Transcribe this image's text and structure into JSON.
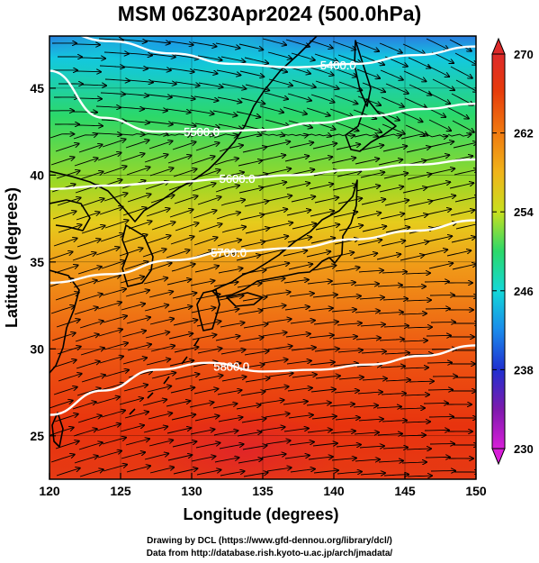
{
  "title": "MSM 06Z30Apr2024 (500.0hPa)",
  "map": {
    "xlabel": "Longitude (degrees)",
    "ylabel": "Latitude  (degrees)",
    "lon_range": [
      120,
      150
    ],
    "lat_range": [
      22.5,
      48
    ],
    "lon_ticks": [
      "120",
      "125",
      "130",
      "135",
      "140",
      "145",
      "150"
    ],
    "lat_ticks": [
      "25",
      "30",
      "35",
      "40",
      "45"
    ],
    "field": "temperature",
    "contours": [
      {
        "label": "5400.0",
        "lats": [
          48.4,
          47.7,
          47.0,
          46.4,
          46.2,
          46.4,
          46.9,
          47.4
        ]
      },
      {
        "label": "5500.0",
        "lats": [
          46.0,
          43.3,
          42.5,
          42.5,
          42.6,
          43.0,
          43.4,
          43.8,
          44.1
        ]
      },
      {
        "label": "5600.0",
        "lats": [
          39.2,
          39.4,
          39.6,
          39.8,
          40.0,
          40.3,
          40.6,
          40.9
        ]
      },
      {
        "label": "5700.0",
        "lats": [
          33.8,
          34.3,
          35.1,
          35.6,
          35.8,
          36.3,
          36.8,
          37.4
        ]
      },
      {
        "label": "5800.0",
        "lats": [
          26.2,
          27.6,
          28.8,
          29.2,
          28.7,
          28.8,
          29.1,
          29.6,
          30.2
        ]
      }
    ],
    "contour_label_lons": [
      140.3,
      130.7,
      133.2,
      132.6,
      132.8
    ]
  },
  "colorbar": {
    "min": 230,
    "max": 270,
    "tick_labels": [
      "270",
      "262",
      "254",
      "246",
      "238",
      "230"
    ],
    "colors": [
      "#d81ed8",
      "#7d1aad",
      "#2030d0",
      "#1a8aeb",
      "#13d8d8",
      "#2bd86a",
      "#7ad820",
      "#c8e01e",
      "#f0b41a",
      "#f07a10",
      "#e63a0c",
      "#dd2a2a"
    ]
  },
  "credits": {
    "line1": "Drawing by DCL (https://www.gfd-dennou.org/library/dcl/)",
    "line2": "Data from http://database.rish.kyoto-u.ac.jp/arch/jmadata/"
  }
}
